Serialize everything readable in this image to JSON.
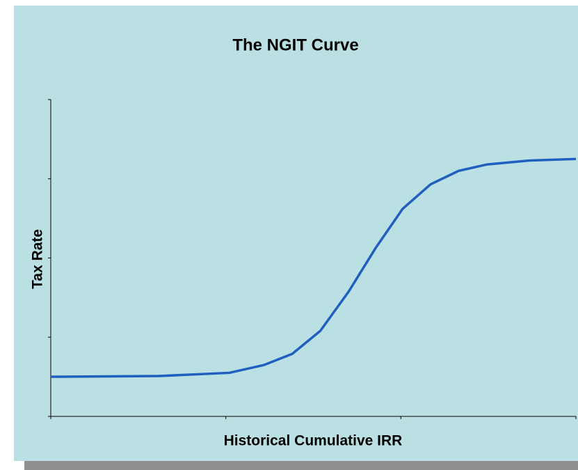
{
  "chart_data": {
    "type": "line",
    "title": "The NGIT Curve",
    "x_label": "Historical Cumulative IRR",
    "y_label": "Tax Rate",
    "x": [
      0,
      0.62,
      1.02,
      1.22,
      1.38,
      1.54,
      1.7,
      1.86,
      2.01,
      2.17,
      2.33,
      2.49,
      2.73,
      3.0
    ],
    "series": [
      {
        "name": "NGIT",
        "color": "#1f5fbf",
        "values": [
          0.5,
          0.51,
          0.55,
          0.65,
          0.79,
          1.08,
          1.57,
          2.14,
          2.62,
          2.93,
          3.1,
          3.18,
          3.23,
          3.25
        ]
      }
    ],
    "xlim": [
      0,
      3
    ],
    "xticks": [
      0,
      1,
      2,
      3
    ],
    "ylim": [
      0,
      4
    ],
    "yticks": [
      0,
      1,
      2,
      3,
      4
    ]
  }
}
